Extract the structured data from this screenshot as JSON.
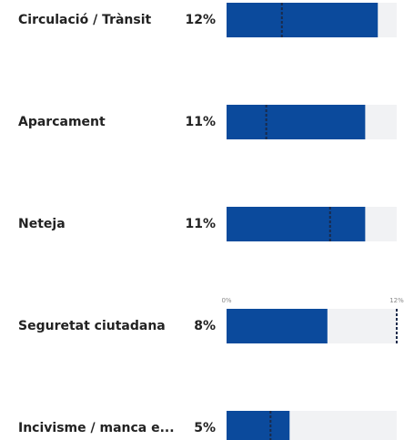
{
  "chart_data": {
    "type": "bar",
    "orientation": "horizontal",
    "categories": [
      "Circulació / Trànsit",
      "Aparcament",
      "Neteja",
      "Seguretat ciutadana",
      "Incivisme / manca e..."
    ],
    "values": [
      12,
      11,
      11,
      8,
      5
    ],
    "value_labels": [
      "12%",
      "11%",
      "11%",
      "8%",
      "5%"
    ],
    "color": "#0b4a9c",
    "track_color": "#f1f2f4",
    "xlim": [
      0,
      13.5
    ],
    "markers": {
      "values": [
        3.9,
        2.8,
        7.3,
        12,
        3.1
      ],
      "color": "#1a2a4a",
      "xlim": [
        0,
        12
      ],
      "xticks": [
        {
          "value": 0,
          "label": "0%"
        },
        {
          "value": 12,
          "label": "12%"
        }
      ],
      "axis_row": 3
    }
  }
}
